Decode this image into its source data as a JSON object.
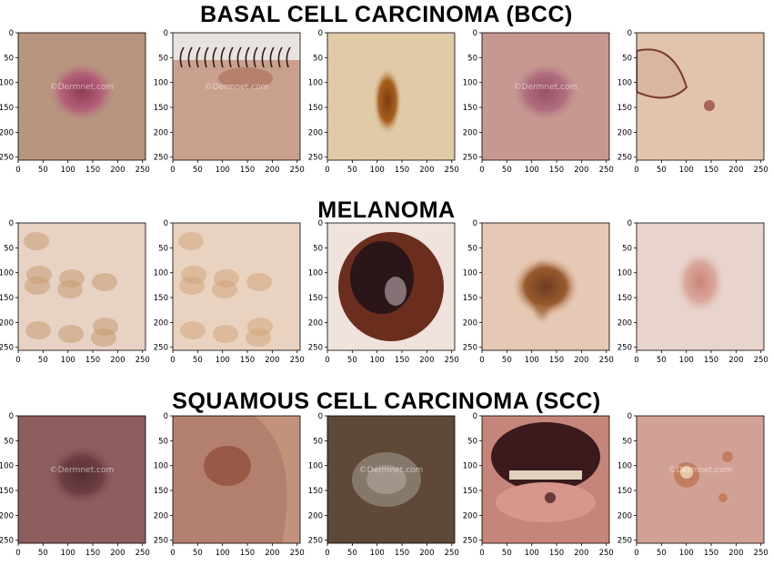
{
  "rows": [
    {
      "title": "BASAL CELL CARCINOMA (BCC)",
      "images": [
        {
          "name": "bcc-image-1",
          "bg": "#b7957f",
          "lesion": "#b5607a",
          "lesion2": "#8e3c55",
          "watermark": "©Dermnet.com",
          "kind": "nodule"
        },
        {
          "name": "bcc-image-2",
          "bg": "#c9a08e",
          "lesion": "#a86a58",
          "lesion2": "#2a1c18",
          "watermark": "©Dermnet.com",
          "kind": "eyelid"
        },
        {
          "name": "bcc-image-3",
          "bg": "#e1caa7",
          "lesion": "#a8601f",
          "lesion2": "#7a3c12",
          "watermark": "",
          "kind": "mole"
        },
        {
          "name": "bcc-image-4",
          "bg": "#c79891",
          "lesion": "#b06f80",
          "lesion2": "#9a5065",
          "watermark": "©Dermnet.com",
          "kind": "nodule"
        },
        {
          "name": "bcc-image-5",
          "bg": "#e2c3ac",
          "lesion": "#d8a59a",
          "lesion2": "#8a3b3a",
          "watermark": "",
          "kind": "fold"
        }
      ]
    },
    {
      "title": "MELANOMA",
      "images": [
        {
          "name": "melanoma-image-1",
          "bg": "#e8d2c4",
          "lesion": "#c79a72",
          "lesion2": "#a6734c",
          "watermark": "",
          "kind": "patchy"
        },
        {
          "name": "melanoma-image-2",
          "bg": "#e9d3c0",
          "lesion": "#d2a57b",
          "lesion2": "#b88658",
          "watermark": "",
          "kind": "patchy"
        },
        {
          "name": "melanoma-image-3",
          "bg": "#f0e2dc",
          "lesion": "#6b2e1e",
          "lesion2": "#2a1518",
          "watermark": "",
          "kind": "dark"
        },
        {
          "name": "melanoma-image-4",
          "bg": "#e6c9b4",
          "lesion": "#9a5c2e",
          "lesion2": "#6e3a22",
          "watermark": "",
          "kind": "mole"
        },
        {
          "name": "melanoma-image-5",
          "bg": "#e8d4cc",
          "lesion": "#dba89e",
          "lesion2": "#c98478",
          "watermark": "",
          "kind": "faint"
        }
      ]
    },
    {
      "title": "SQUAMOUS CELL CARCINOMA (SCC)",
      "images": [
        {
          "name": "scc-image-1",
          "bg": "#8e5e5e",
          "lesion": "#6e3e44",
          "lesion2": "#553036",
          "watermark": "©Dermnet.com",
          "kind": "nodule"
        },
        {
          "name": "scc-image-2",
          "bg": "#b3806f",
          "lesion": "#9a5846",
          "lesion2": "#c99a80",
          "watermark": "",
          "kind": "ear"
        },
        {
          "name": "scc-image-3",
          "bg": "#5e4838",
          "lesion": "#8f8478",
          "lesion2": "#a89c92",
          "watermark": "©Dermnet.com",
          "kind": "crust"
        },
        {
          "name": "scc-image-4",
          "bg": "#c5857a",
          "lesion": "#4a2424",
          "lesion2": "#e0d2bc",
          "watermark": "",
          "kind": "mouth"
        },
        {
          "name": "scc-image-5",
          "bg": "#d2a195",
          "lesion": "#c37e62",
          "lesion2": "#e6c8a6",
          "watermark": "©Dermnet.com",
          "kind": "spots"
        }
      ]
    }
  ],
  "axis": {
    "yticks": [
      "0",
      "50",
      "100",
      "150",
      "200",
      "250"
    ],
    "xticks": [
      "0",
      "50",
      "100",
      "150",
      "200",
      "250"
    ]
  }
}
